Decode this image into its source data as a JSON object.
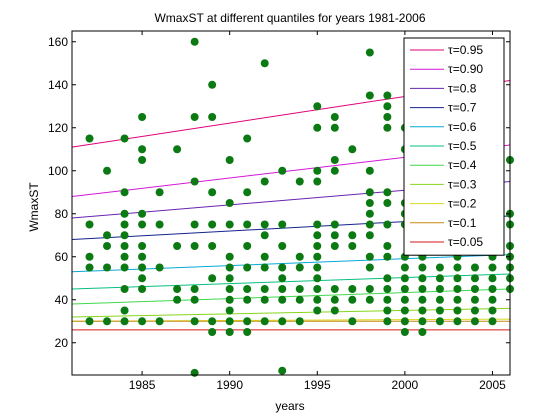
{
  "chart_data": {
    "type": "scatter",
    "title": "WmaxST at different quantiles for years 1981-2006",
    "xlabel": "years",
    "ylabel": "WmaxST",
    "xlim": [
      1981,
      2006
    ],
    "ylim": [
      5,
      165
    ],
    "xticks": [
      1985,
      1990,
      1995,
      2000,
      2005
    ],
    "yticks": [
      20,
      40,
      60,
      80,
      100,
      120,
      140,
      160
    ],
    "grid": false,
    "legend_position": "top-right",
    "point_color": "#0b7a12",
    "points": [
      [
        1982,
        115
      ],
      [
        1982,
        75
      ],
      [
        1982,
        60
      ],
      [
        1982,
        55
      ],
      [
        1982,
        30
      ],
      [
        1983,
        100
      ],
      [
        1983,
        70
      ],
      [
        1983,
        65
      ],
      [
        1983,
        55
      ],
      [
        1983,
        30
      ],
      [
        1984,
        115
      ],
      [
        1984,
        90
      ],
      [
        1984,
        80
      ],
      [
        1984,
        75
      ],
      [
        1984,
        70
      ],
      [
        1984,
        65
      ],
      [
        1984,
        60
      ],
      [
        1984,
        55
      ],
      [
        1984,
        45
      ],
      [
        1984,
        35
      ],
      [
        1984,
        30
      ],
      [
        1985,
        125
      ],
      [
        1985,
        110
      ],
      [
        1985,
        105
      ],
      [
        1985,
        80
      ],
      [
        1985,
        75
      ],
      [
        1985,
        65
      ],
      [
        1985,
        60
      ],
      [
        1985,
        55
      ],
      [
        1985,
        50
      ],
      [
        1985,
        45
      ],
      [
        1985,
        30
      ],
      [
        1986,
        90
      ],
      [
        1986,
        75
      ],
      [
        1986,
        55
      ],
      [
        1986,
        30
      ],
      [
        1987,
        110
      ],
      [
        1987,
        65
      ],
      [
        1987,
        45
      ],
      [
        1987,
        40
      ],
      [
        1988,
        160
      ],
      [
        1988,
        125
      ],
      [
        1988,
        95
      ],
      [
        1988,
        75
      ],
      [
        1988,
        65
      ],
      [
        1988,
        45
      ],
      [
        1988,
        40
      ],
      [
        1988,
        30
      ],
      [
        1988,
        6
      ],
      [
        1989,
        140
      ],
      [
        1989,
        125
      ],
      [
        1989,
        90
      ],
      [
        1989,
        75
      ],
      [
        1989,
        65
      ],
      [
        1989,
        50
      ],
      [
        1989,
        30
      ],
      [
        1989,
        25
      ],
      [
        1990,
        105
      ],
      [
        1990,
        85
      ],
      [
        1990,
        75
      ],
      [
        1990,
        60
      ],
      [
        1990,
        55
      ],
      [
        1990,
        50
      ],
      [
        1990,
        45
      ],
      [
        1990,
        40
      ],
      [
        1990,
        35
      ],
      [
        1990,
        30
      ],
      [
        1990,
        25
      ],
      [
        1991,
        115
      ],
      [
        1991,
        90
      ],
      [
        1991,
        75
      ],
      [
        1991,
        65
      ],
      [
        1991,
        55
      ],
      [
        1991,
        45
      ],
      [
        1991,
        40
      ],
      [
        1991,
        30
      ],
      [
        1991,
        25
      ],
      [
        1992,
        150
      ],
      [
        1992,
        95
      ],
      [
        1992,
        75
      ],
      [
        1992,
        70
      ],
      [
        1992,
        60
      ],
      [
        1992,
        55
      ],
      [
        1992,
        45
      ],
      [
        1992,
        40
      ],
      [
        1992,
        30
      ],
      [
        1993,
        100
      ],
      [
        1993,
        75
      ],
      [
        1993,
        65
      ],
      [
        1993,
        55
      ],
      [
        1993,
        50
      ],
      [
        1993,
        45
      ],
      [
        1993,
        40
      ],
      [
        1993,
        30
      ],
      [
        1993,
        7
      ],
      [
        1994,
        95
      ],
      [
        1994,
        60
      ],
      [
        1994,
        55
      ],
      [
        1994,
        45
      ],
      [
        1994,
        40
      ],
      [
        1994,
        30
      ],
      [
        1995,
        130
      ],
      [
        1995,
        120
      ],
      [
        1995,
        100
      ],
      [
        1995,
        95
      ],
      [
        1995,
        75
      ],
      [
        1995,
        70
      ],
      [
        1995,
        65
      ],
      [
        1995,
        60
      ],
      [
        1995,
        55
      ],
      [
        1995,
        50
      ],
      [
        1995,
        45
      ],
      [
        1995,
        40
      ],
      [
        1995,
        35
      ],
      [
        1996,
        125
      ],
      [
        1996,
        120
      ],
      [
        1996,
        105
      ],
      [
        1996,
        100
      ],
      [
        1996,
        75
      ],
      [
        1996,
        70
      ],
      [
        1996,
        65
      ],
      [
        1996,
        45
      ],
      [
        1996,
        40
      ],
      [
        1996,
        35
      ],
      [
        1997,
        110
      ],
      [
        1997,
        70
      ],
      [
        1997,
        65
      ],
      [
        1997,
        45
      ],
      [
        1997,
        40
      ],
      [
        1997,
        30
      ],
      [
        1998,
        155
      ],
      [
        1998,
        135
      ],
      [
        1998,
        100
      ],
      [
        1998,
        90
      ],
      [
        1998,
        85
      ],
      [
        1998,
        80
      ],
      [
        1998,
        75
      ],
      [
        1998,
        70
      ],
      [
        1998,
        60
      ],
      [
        1998,
        55
      ],
      [
        1998,
        45
      ],
      [
        1998,
        40
      ],
      [
        1999,
        135
      ],
      [
        1999,
        130
      ],
      [
        1999,
        125
      ],
      [
        1999,
        120
      ],
      [
        1999,
        90
      ],
      [
        1999,
        85
      ],
      [
        1999,
        75
      ],
      [
        1999,
        65
      ],
      [
        1999,
        60
      ],
      [
        1999,
        50
      ],
      [
        1999,
        45
      ],
      [
        1999,
        40
      ],
      [
        1999,
        35
      ],
      [
        1999,
        30
      ],
      [
        2000,
        120
      ],
      [
        2000,
        110
      ],
      [
        2000,
        85
      ],
      [
        2000,
        80
      ],
      [
        2000,
        75
      ],
      [
        2000,
        60
      ],
      [
        2000,
        55
      ],
      [
        2000,
        50
      ],
      [
        2000,
        45
      ],
      [
        2000,
        40
      ],
      [
        2000,
        35
      ],
      [
        2000,
        30
      ],
      [
        2000,
        25
      ],
      [
        2001,
        85
      ],
      [
        2001,
        75
      ],
      [
        2001,
        60
      ],
      [
        2001,
        55
      ],
      [
        2001,
        50
      ],
      [
        2001,
        45
      ],
      [
        2001,
        40
      ],
      [
        2001,
        35
      ],
      [
        2001,
        30
      ],
      [
        2001,
        25
      ],
      [
        2002,
        55
      ],
      [
        2002,
        50
      ],
      [
        2002,
        45
      ],
      [
        2002,
        40
      ],
      [
        2002,
        35
      ],
      [
        2002,
        30
      ],
      [
        2003,
        70
      ],
      [
        2003,
        60
      ],
      [
        2003,
        55
      ],
      [
        2003,
        50
      ],
      [
        2003,
        45
      ],
      [
        2003,
        40
      ],
      [
        2003,
        35
      ],
      [
        2003,
        30
      ],
      [
        2004,
        65
      ],
      [
        2004,
        55
      ],
      [
        2004,
        50
      ],
      [
        2004,
        45
      ],
      [
        2004,
        40
      ],
      [
        2004,
        35
      ],
      [
        2004,
        30
      ],
      [
        2005,
        160
      ],
      [
        2005,
        90
      ],
      [
        2005,
        85
      ],
      [
        2005,
        75
      ],
      [
        2005,
        65
      ],
      [
        2005,
        60
      ],
      [
        2005,
        55
      ],
      [
        2005,
        50
      ],
      [
        2005,
        45
      ],
      [
        2005,
        40
      ],
      [
        2005,
        35
      ],
      [
        2005,
        30
      ],
      [
        2006,
        105
      ],
      [
        2006,
        80
      ],
      [
        2006,
        75
      ],
      [
        2006,
        65
      ],
      [
        2006,
        60
      ],
      [
        2006,
        55
      ],
      [
        2006,
        50
      ],
      [
        2006,
        45
      ]
    ],
    "series": [
      {
        "name": "τ=0.95",
        "color": "#e0007a",
        "x": [
          1981,
          2006
        ],
        "y": [
          111,
          142
        ]
      },
      {
        "name": "τ=0.90",
        "color": "#d415d8",
        "x": [
          1981,
          2006
        ],
        "y": [
          88,
          112
        ]
      },
      {
        "name": "τ=0.8",
        "color": "#6a22b0",
        "x": [
          1981,
          2006
        ],
        "y": [
          78,
          95
        ]
      },
      {
        "name": "τ=0.7",
        "color": "#13238c",
        "x": [
          1981,
          2006
        ],
        "y": [
          68,
          79
        ]
      },
      {
        "name": "τ=0.6",
        "color": "#08a8d8",
        "x": [
          1981,
          2006
        ],
        "y": [
          53,
          61
        ]
      },
      {
        "name": "τ=0.5",
        "color": "#07c07f",
        "x": [
          1981,
          2006
        ],
        "y": [
          45,
          52
        ]
      },
      {
        "name": "τ=0.4",
        "color": "#3ed84a",
        "x": [
          1981,
          2006
        ],
        "y": [
          38,
          45
        ]
      },
      {
        "name": "τ=0.3",
        "color": "#86d61a",
        "x": [
          1981,
          2006
        ],
        "y": [
          32,
          36
        ]
      },
      {
        "name": "τ=0.2",
        "color": "#d8d820",
        "x": [
          1981,
          2006
        ],
        "y": [
          30,
          31
        ]
      },
      {
        "name": "τ=0.1",
        "color": "#c88a14",
        "x": [
          1981,
          2006
        ],
        "y": [
          30,
          30
        ]
      },
      {
        "name": "τ=0.05",
        "color": "#d61818",
        "x": [
          1981,
          2006
        ],
        "y": [
          26,
          26
        ]
      }
    ]
  }
}
